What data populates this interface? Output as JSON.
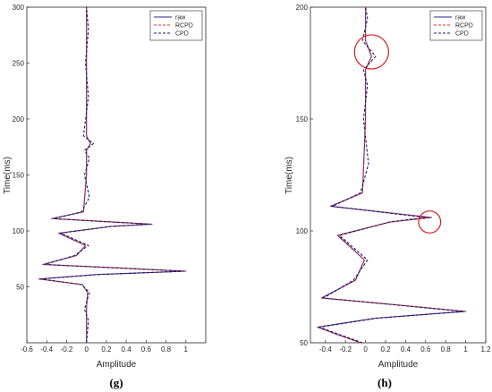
{
  "chart_data": [
    {
      "type": "line",
      "panel_label": "(g)",
      "xlabel": "Amplitude",
      "ylabel": "Time(ms)",
      "xlim": [
        -0.6,
        1.2
      ],
      "ylim": [
        0,
        300
      ],
      "x_ticks": [
        -0.6,
        -0.4,
        -0.2,
        0,
        0.2,
        0.4,
        0.6,
        0.8,
        1
      ],
      "x_tick_labels": [
        "-0.6",
        "-0.4",
        "-0.2",
        "0",
        "0.2",
        "0.4",
        "0.6",
        "0.8",
        "1"
      ],
      "y_ticks": [
        50,
        100,
        150,
        200,
        250,
        300
      ],
      "y_tick_labels": [
        "50",
        "100",
        "150",
        "200",
        "250",
        "300"
      ],
      "legend": {
        "position": "top-right",
        "entries": [
          "raw",
          "RCPD",
          "CPD"
        ]
      },
      "series": [
        {
          "name": "raw",
          "color": "#2b2b8c",
          "style": "solid",
          "points": [
            [
              0,
              0
            ],
            [
              0,
              30
            ],
            [
              0.01,
              45
            ],
            [
              -0.04,
              52
            ],
            [
              -0.48,
              57
            ],
            [
              0.1,
              61
            ],
            [
              1.0,
              64
            ],
            [
              0.3,
              67
            ],
            [
              -0.44,
              70
            ],
            [
              -0.1,
              78
            ],
            [
              -0.01,
              87
            ],
            [
              -0.28,
              98
            ],
            [
              0.25,
              104
            ],
            [
              0.66,
              106
            ],
            [
              -0.35,
              111
            ],
            [
              -0.03,
              117
            ],
            [
              0,
              150
            ],
            [
              0,
              172
            ],
            [
              0.04,
              178
            ],
            [
              0,
              185
            ],
            [
              0,
              250
            ],
            [
              0,
              300
            ]
          ]
        },
        {
          "name": "RCPD",
          "color": "#e03030",
          "style": "dashed",
          "points": [
            [
              0,
              0
            ],
            [
              0,
              30
            ],
            [
              0.01,
              45
            ],
            [
              -0.04,
              52
            ],
            [
              -0.47,
              57
            ],
            [
              0.1,
              61
            ],
            [
              0.99,
              64
            ],
            [
              0.3,
              67
            ],
            [
              -0.43,
              70
            ],
            [
              -0.1,
              78
            ],
            [
              -0.01,
              87
            ],
            [
              -0.27,
              98
            ],
            [
              0.25,
              104
            ],
            [
              0.65,
              106
            ],
            [
              -0.34,
              111
            ],
            [
              -0.03,
              117
            ],
            [
              0,
              150
            ],
            [
              0,
              172
            ],
            [
              0.04,
              178
            ],
            [
              0,
              185
            ],
            [
              0,
              250
            ],
            [
              0,
              300
            ]
          ]
        },
        {
          "name": "CPD",
          "color": "#1a1a6e",
          "style": "dashed",
          "points": [
            [
              0,
              0
            ],
            [
              0.02,
              20
            ],
            [
              -0.02,
              30
            ],
            [
              0.03,
              45
            ],
            [
              -0.05,
              52
            ],
            [
              -0.46,
              57
            ],
            [
              0.12,
              61
            ],
            [
              0.98,
              64
            ],
            [
              0.28,
              67
            ],
            [
              -0.42,
              70
            ],
            [
              -0.12,
              78
            ],
            [
              0.02,
              87
            ],
            [
              -0.26,
              98
            ],
            [
              0.24,
              104
            ],
            [
              0.64,
              106
            ],
            [
              -0.33,
              111
            ],
            [
              -0.05,
              117
            ],
            [
              0.03,
              130
            ],
            [
              -0.02,
              150
            ],
            [
              0.03,
              165
            ],
            [
              -0.02,
              172
            ],
            [
              0.07,
              178
            ],
            [
              -0.03,
              185
            ],
            [
              0.02,
              220
            ],
            [
              -0.01,
              250
            ],
            [
              0.02,
              280
            ],
            [
              0,
              300
            ]
          ]
        }
      ]
    },
    {
      "type": "line",
      "panel_label": "(h)",
      "xlabel": "Amplitude",
      "ylabel": "Time(ms)",
      "xlim": [
        -0.55,
        1.2
      ],
      "ylim": [
        50,
        200
      ],
      "x_ticks": [
        -0.4,
        -0.2,
        0,
        0.2,
        0.4,
        0.6,
        0.8,
        1,
        1.2
      ],
      "x_tick_labels": [
        "-0.4",
        "-0.2",
        "0",
        "0.2",
        "0.4",
        "0.6",
        "0.8",
        "1",
        "1.2"
      ],
      "y_ticks": [
        50,
        100,
        150,
        200
      ],
      "y_tick_labels": [
        "50",
        "100",
        "150",
        "200"
      ],
      "legend": {
        "position": "top-right",
        "entries": [
          "raw",
          "RCPD",
          "CPD"
        ]
      },
      "annotations": [
        {
          "shape": "circle",
          "color": "#d42020",
          "center": [
            0.06,
            180
          ],
          "radius_x_units": 0.17
        },
        {
          "shape": "circle",
          "color": "#d42020",
          "center": [
            0.64,
            104
          ],
          "radius_x_units": 0.11
        }
      ],
      "series": [
        {
          "name": "raw",
          "color": "#2b2b8c",
          "style": "solid",
          "points": [
            [
              -0.05,
              50
            ],
            [
              -0.3,
              54
            ],
            [
              -0.48,
              57
            ],
            [
              0.1,
              61
            ],
            [
              1.0,
              64
            ],
            [
              0.3,
              67
            ],
            [
              -0.44,
              70
            ],
            [
              -0.1,
              78
            ],
            [
              -0.01,
              87
            ],
            [
              -0.28,
              98
            ],
            [
              0.25,
              104
            ],
            [
              0.66,
              106
            ],
            [
              -0.35,
              111
            ],
            [
              -0.03,
              117
            ],
            [
              0,
              150
            ],
            [
              0,
              172
            ],
            [
              0.06,
              178
            ],
            [
              0,
              185
            ],
            [
              0,
              200
            ]
          ]
        },
        {
          "name": "RCPD",
          "color": "#e03030",
          "style": "dashed",
          "points": [
            [
              -0.05,
              50
            ],
            [
              -0.3,
              54
            ],
            [
              -0.47,
              57
            ],
            [
              0.1,
              61
            ],
            [
              0.99,
              64
            ],
            [
              0.3,
              67
            ],
            [
              -0.43,
              70
            ],
            [
              -0.1,
              78
            ],
            [
              -0.01,
              87
            ],
            [
              -0.27,
              98
            ],
            [
              0.25,
              104
            ],
            [
              0.65,
              106
            ],
            [
              -0.34,
              111
            ],
            [
              -0.03,
              117
            ],
            [
              0,
              150
            ],
            [
              0,
              172
            ],
            [
              0.06,
              178
            ],
            [
              0,
              185
            ],
            [
              0,
              200
            ]
          ]
        },
        {
          "name": "CPD",
          "color": "#1a1a6e",
          "style": "dashed",
          "points": [
            [
              -0.03,
              50
            ],
            [
              -0.28,
              54
            ],
            [
              -0.46,
              57
            ],
            [
              0.12,
              61
            ],
            [
              0.98,
              64
            ],
            [
              0.28,
              67
            ],
            [
              -0.42,
              70
            ],
            [
              -0.12,
              78
            ],
            [
              0.02,
              87
            ],
            [
              -0.26,
              98
            ],
            [
              0.24,
              104
            ],
            [
              0.6,
              106
            ],
            [
              -0.33,
              111
            ],
            [
              -0.05,
              117
            ],
            [
              0.03,
              130
            ],
            [
              -0.02,
              150
            ],
            [
              0.02,
              165
            ],
            [
              -0.02,
              172
            ],
            [
              0.1,
              178
            ],
            [
              -0.03,
              185
            ],
            [
              0.02,
              195
            ],
            [
              0,
              200
            ]
          ]
        }
      ]
    }
  ]
}
